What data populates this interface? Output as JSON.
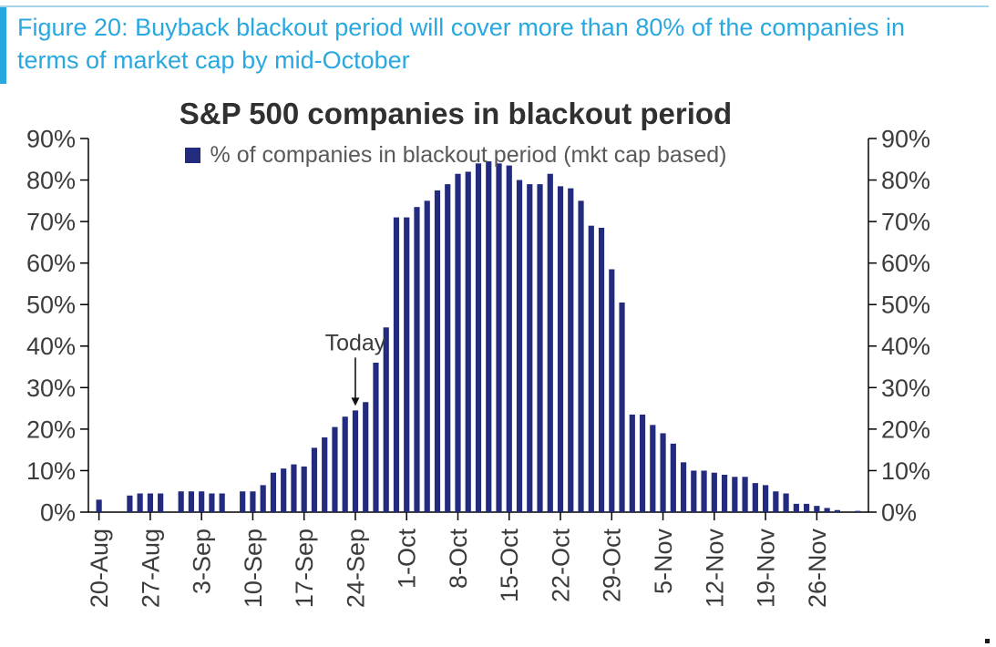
{
  "figure_caption": {
    "text": "Figure 20: Buyback blackout period will cover more than 80% of the companies in terms of market cap by mid-October",
    "accent_color": "#29a8e0"
  },
  "chart_data": {
    "type": "bar",
    "title": "S&P 500 companies in blackout period",
    "legend": [
      {
        "label": "% of companies in blackout period (mkt cap based)",
        "color": "#222b7d"
      }
    ],
    "bar_color": "#222b7d",
    "grid": false,
    "y_axes": "both-sides",
    "ylim": [
      0,
      90
    ],
    "ytick_step": 10,
    "ytick_labels": [
      "0%",
      "10%",
      "20%",
      "30%",
      "40%",
      "50%",
      "60%",
      "70%",
      "80%",
      "90%"
    ],
    "x_tick_labels": [
      "20-Aug",
      "27-Aug",
      "3-Sep",
      "10-Sep",
      "17-Sep",
      "24-Sep",
      "1-Oct",
      "8-Oct",
      "15-Oct",
      "22-Oct",
      "29-Oct",
      "5-Nov",
      "12-Nov",
      "19-Nov",
      "26-Nov"
    ],
    "annotation": {
      "text": "Today",
      "date": "24-Sep",
      "value": 24.5
    },
    "series": [
      {
        "name": "% of companies in blackout period (mkt cap based)",
        "points": [
          [
            "20-Aug",
            3
          ],
          [
            "21-Aug",
            0
          ],
          [
            "22-Aug",
            0
          ],
          [
            "23-Aug",
            4
          ],
          [
            "24-Aug",
            4.5
          ],
          [
            "27-Aug",
            4.5
          ],
          [
            "28-Aug",
            4.5
          ],
          [
            "29-Aug",
            0
          ],
          [
            "30-Aug",
            5
          ],
          [
            "31-Aug",
            5
          ],
          [
            "3-Sep",
            5
          ],
          [
            "4-Sep",
            4.5
          ],
          [
            "5-Sep",
            4.5
          ],
          [
            "6-Sep",
            0
          ],
          [
            "7-Sep",
            5
          ],
          [
            "10-Sep",
            5
          ],
          [
            "11-Sep",
            6.5
          ],
          [
            "12-Sep",
            9.5
          ],
          [
            "13-Sep",
            10.5
          ],
          [
            "14-Sep",
            11.5
          ],
          [
            "17-Sep",
            11
          ],
          [
            "18-Sep",
            15.5
          ],
          [
            "19-Sep",
            18
          ],
          [
            "20-Sep",
            20.5
          ],
          [
            "21-Sep",
            23
          ],
          [
            "24-Sep",
            24.5
          ],
          [
            "25-Sep",
            26.5
          ],
          [
            "26-Sep",
            36
          ],
          [
            "27-Sep",
            44.5
          ],
          [
            "28-Sep",
            71
          ],
          [
            "1-Oct",
            71
          ],
          [
            "2-Oct",
            73.5
          ],
          [
            "3-Oct",
            75
          ],
          [
            "4-Oct",
            77.5
          ],
          [
            "5-Oct",
            79
          ],
          [
            "8-Oct",
            81.5
          ],
          [
            "9-Oct",
            82
          ],
          [
            "10-Oct",
            84
          ],
          [
            "11-Oct",
            84.5
          ],
          [
            "12-Oct",
            84
          ],
          [
            "15-Oct",
            83.5
          ],
          [
            "16-Oct",
            80
          ],
          [
            "17-Oct",
            79
          ],
          [
            "18-Oct",
            79
          ],
          [
            "19-Oct",
            81.5
          ],
          [
            "22-Oct",
            78.5
          ],
          [
            "23-Oct",
            78
          ],
          [
            "24-Oct",
            75
          ],
          [
            "25-Oct",
            69
          ],
          [
            "26-Oct",
            68.5
          ],
          [
            "29-Oct",
            58.5
          ],
          [
            "30-Oct",
            50.5
          ],
          [
            "31-Oct",
            23.5
          ],
          [
            "1-Nov",
            23.5
          ],
          [
            "2-Nov",
            21
          ],
          [
            "5-Nov",
            19
          ],
          [
            "6-Nov",
            16.5
          ],
          [
            "7-Nov",
            12
          ],
          [
            "8-Nov",
            10
          ],
          [
            "9-Nov",
            10
          ],
          [
            "12-Nov",
            9.5
          ],
          [
            "13-Nov",
            9
          ],
          [
            "14-Nov",
            8.5
          ],
          [
            "15-Nov",
            8.5
          ],
          [
            "16-Nov",
            7
          ],
          [
            "19-Nov",
            6.5
          ],
          [
            "20-Nov",
            5
          ],
          [
            "21-Nov",
            4.5
          ],
          [
            "22-Nov",
            2
          ],
          [
            "23-Nov",
            2
          ],
          [
            "26-Nov",
            1.5
          ],
          [
            "27-Nov",
            1
          ],
          [
            "28-Nov",
            0.5
          ],
          [
            "29-Nov",
            0
          ],
          [
            "30-Nov",
            0.3
          ]
        ]
      }
    ]
  }
}
